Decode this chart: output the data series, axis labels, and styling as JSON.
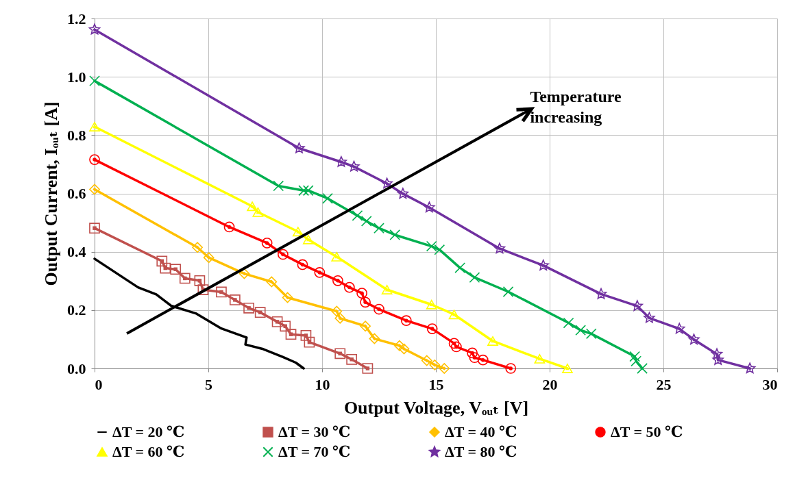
{
  "chart_data": {
    "type": "line",
    "xlabel": "Output Voltage, Vₒᵤₜ [V]",
    "ylabel": "Output Current, Iₒᵤₜ [A]",
    "annotations": [
      "Temperature increasing"
    ],
    "xlim": [
      0,
      30
    ],
    "xticks": [
      0,
      5,
      10,
      15,
      20,
      25,
      30
    ],
    "ylim": [
      0,
      1.2
    ],
    "yticks": [
      {
        "value": 0,
        "label": "0.0"
      },
      {
        "value": 0.2,
        "label": "0.2"
      },
      {
        "value": 0.4,
        "label": "0.4"
      },
      {
        "value": 0.6,
        "label": "0.6"
      },
      {
        "value": 0.8,
        "label": "0.8"
      },
      {
        "value": 1,
        "label": "1.0"
      },
      {
        "value": 1.2,
        "label": "1.2"
      }
    ],
    "grid": true,
    "legend": "bottom",
    "line_style": "solid",
    "series": [
      {
        "name": "ΔT = 20 ℃",
        "color": "#000000",
        "marker": "none",
        "x": [
          0,
          1.91,
          2.71,
          3.36,
          4.47,
          5.57,
          6.68,
          6.63,
          7.38,
          8.28,
          8.84,
          9.19
        ],
        "values": [
          0.376,
          0.278,
          0.254,
          0.215,
          0.188,
          0.137,
          0.106,
          0.082,
          0.067,
          0.039,
          0.02,
          0
        ]
      },
      {
        "name": "ΔT = 30 ℃",
        "color": "#c0504d",
        "marker": "square",
        "x": [
          0,
          2.96,
          3.11,
          3.56,
          3.97,
          4.62,
          4.77,
          5.57,
          6.17,
          6.78,
          7.28,
          8.03,
          8.38,
          8.63,
          9.29,
          9.44,
          10.79,
          11.3,
          12
        ],
        "values": [
          0.481,
          0.368,
          0.344,
          0.34,
          0.309,
          0.301,
          0.27,
          0.262,
          0.235,
          0.207,
          0.192,
          0.16,
          0.145,
          0.117,
          0.113,
          0.09,
          0.051,
          0.031,
          0
        ]
      },
      {
        "name": "ΔT = 40 ℃",
        "color": "#ffc000",
        "marker": "diamond",
        "x": [
          0,
          4.52,
          5.02,
          6.58,
          7.78,
          8.48,
          10.64,
          10.79,
          11.9,
          12.3,
          13.4,
          13.6,
          14.6,
          14.95,
          15.37
        ],
        "values": [
          0.614,
          0.415,
          0.38,
          0.325,
          0.297,
          0.243,
          0.196,
          0.172,
          0.145,
          0.102,
          0.078,
          0.067,
          0.027,
          0.012,
          0
        ]
      },
      {
        "name": "ΔT = 50 ℃",
        "color": "#ff0000",
        "marker": "circle",
        "x": [
          0,
          5.92,
          7.58,
          8.28,
          9.14,
          9.89,
          10.69,
          11.2,
          11.75,
          11.9,
          12.5,
          13.7,
          14.84,
          15.8,
          15.9,
          16.6,
          16.7,
          17.07,
          18.29
        ],
        "values": [
          0.716,
          0.485,
          0.43,
          0.391,
          0.356,
          0.329,
          0.301,
          0.278,
          0.258,
          0.227,
          0.203,
          0.164,
          0.136,
          0.086,
          0.074,
          0.053,
          0.037,
          0.029,
          0
        ]
      },
      {
        "name": "ΔT = 60 ℃",
        "color": "#ffff00",
        "marker": "triangle",
        "x": [
          0,
          6.93,
          7.18,
          8.94,
          9.39,
          10.64,
          12.85,
          14.81,
          15.8,
          17.5,
          19.56,
          20.78
        ],
        "values": [
          0.829,
          0.556,
          0.536,
          0.469,
          0.442,
          0.383,
          0.27,
          0.219,
          0.185,
          0.094,
          0.033,
          0
        ]
      },
      {
        "name": "ΔT = 70 ℃",
        "color": "#00b050",
        "marker": "cross",
        "x": [
          0,
          8.08,
          9.19,
          9.39,
          10.24,
          11.55,
          11.95,
          12.5,
          13.2,
          14.81,
          15.16,
          16.06,
          16.7,
          18.18,
          20.83,
          21.36,
          21.83,
          23.74,
          23.8,
          24.07
        ],
        "values": [
          0.986,
          0.626,
          0.61,
          0.61,
          0.583,
          0.524,
          0.505,
          0.481,
          0.458,
          0.419,
          0.407,
          0.345,
          0.312,
          0.263,
          0.156,
          0.131,
          0.119,
          0.041,
          0.025,
          0
        ]
      },
      {
        "name": "ΔT = 80 ℃",
        "color": "#7030a0",
        "marker": "star",
        "x": [
          0,
          8.99,
          10.84,
          11.4,
          12.85,
          13.55,
          14.71,
          17.8,
          19.72,
          22.26,
          23.85,
          24.38,
          25.7,
          26.34,
          27.35,
          27.4,
          28.8
        ],
        "values": [
          1.162,
          0.755,
          0.708,
          0.692,
          0.634,
          0.599,
          0.552,
          0.411,
          0.353,
          0.255,
          0.214,
          0.173,
          0.136,
          0.099,
          0.049,
          0.029,
          0
        ]
      }
    ]
  }
}
